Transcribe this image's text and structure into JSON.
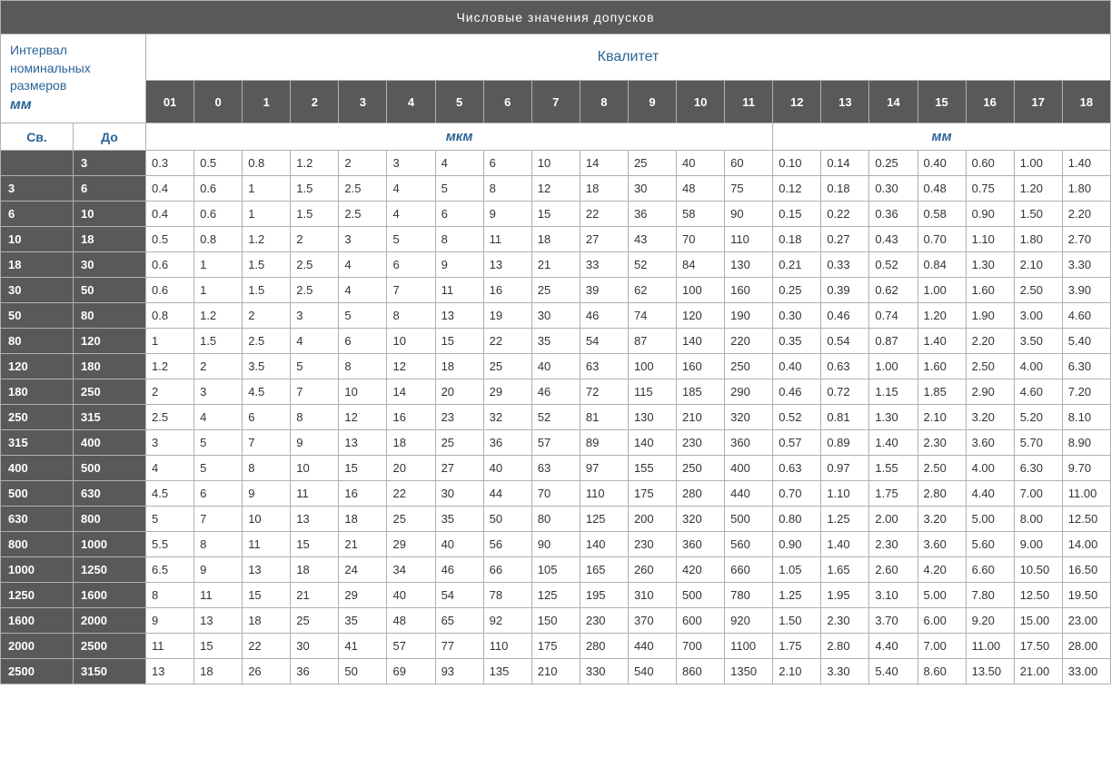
{
  "colors": {
    "dark_bg": "#595959",
    "dark_text": "#ffffff",
    "light_bg": "#ffffff",
    "accent_text": "#2a6496",
    "body_text": "#333333",
    "border": "#b0b0b0"
  },
  "title": "Числовые значения допусков",
  "corner": {
    "line1": "Интервал",
    "line2": "номинальных",
    "line3": "размеров",
    "unit": "мм"
  },
  "kvalitet_label": "Квалитет",
  "grade_labels": [
    "01",
    "0",
    "1",
    "2",
    "3",
    "4",
    "5",
    "6",
    "7",
    "8",
    "9",
    "10",
    "11",
    "12",
    "13",
    "14",
    "15",
    "16",
    "17",
    "18"
  ],
  "sub_labels": {
    "from": "Св.",
    "to": "До"
  },
  "unit_labels": {
    "mkm": "мкм",
    "mm": "мм"
  },
  "column_widths": {
    "from_col": 40,
    "to_col": 40,
    "grade_cols": "auto"
  },
  "rows": [
    {
      "from": "",
      "to": "3",
      "v": [
        "0.3",
        "0.5",
        "0.8",
        "1.2",
        "2",
        "3",
        "4",
        "6",
        "10",
        "14",
        "25",
        "40",
        "60",
        "0.10",
        "0.14",
        "0.25",
        "0.40",
        "0.60",
        "1.00",
        "1.40"
      ]
    },
    {
      "from": "3",
      "to": "6",
      "v": [
        "0.4",
        "0.6",
        "1",
        "1.5",
        "2.5",
        "4",
        "5",
        "8",
        "12",
        "18",
        "30",
        "48",
        "75",
        "0.12",
        "0.18",
        "0.30",
        "0.48",
        "0.75",
        "1.20",
        "1.80"
      ]
    },
    {
      "from": "6",
      "to": "10",
      "v": [
        "0.4",
        "0.6",
        "1",
        "1.5",
        "2.5",
        "4",
        "6",
        "9",
        "15",
        "22",
        "36",
        "58",
        "90",
        "0.15",
        "0.22",
        "0.36",
        "0.58",
        "0.90",
        "1.50",
        "2.20"
      ]
    },
    {
      "from": "10",
      "to": "18",
      "v": [
        "0.5",
        "0.8",
        "1.2",
        "2",
        "3",
        "5",
        "8",
        "11",
        "18",
        "27",
        "43",
        "70",
        "110",
        "0.18",
        "0.27",
        "0.43",
        "0.70",
        "1.10",
        "1.80",
        "2.70"
      ]
    },
    {
      "from": "18",
      "to": "30",
      "v": [
        "0.6",
        "1",
        "1.5",
        "2.5",
        "4",
        "6",
        "9",
        "13",
        "21",
        "33",
        "52",
        "84",
        "130",
        "0.21",
        "0.33",
        "0.52",
        "0.84",
        "1.30",
        "2.10",
        "3.30"
      ]
    },
    {
      "from": "30",
      "to": "50",
      "v": [
        "0.6",
        "1",
        "1.5",
        "2.5",
        "4",
        "7",
        "11",
        "16",
        "25",
        "39",
        "62",
        "100",
        "160",
        "0.25",
        "0.39",
        "0.62",
        "1.00",
        "1.60",
        "2.50",
        "3.90"
      ]
    },
    {
      "from": "50",
      "to": "80",
      "v": [
        "0.8",
        "1.2",
        "2",
        "3",
        "5",
        "8",
        "13",
        "19",
        "30",
        "46",
        "74",
        "120",
        "190",
        "0.30",
        "0.46",
        "0.74",
        "1.20",
        "1.90",
        "3.00",
        "4.60"
      ]
    },
    {
      "from": "80",
      "to": "120",
      "v": [
        "1",
        "1.5",
        "2.5",
        "4",
        "6",
        "10",
        "15",
        "22",
        "35",
        "54",
        "87",
        "140",
        "220",
        "0.35",
        "0.54",
        "0.87",
        "1.40",
        "2.20",
        "3.50",
        "5.40"
      ]
    },
    {
      "from": "120",
      "to": "180",
      "v": [
        "1.2",
        "2",
        "3.5",
        "5",
        "8",
        "12",
        "18",
        "25",
        "40",
        "63",
        "100",
        "160",
        "250",
        "0.40",
        "0.63",
        "1.00",
        "1.60",
        "2.50",
        "4.00",
        "6.30"
      ]
    },
    {
      "from": "180",
      "to": "250",
      "v": [
        "2",
        "3",
        "4.5",
        "7",
        "10",
        "14",
        "20",
        "29",
        "46",
        "72",
        "115",
        "185",
        "290",
        "0.46",
        "0.72",
        "1.15",
        "1.85",
        "2.90",
        "4.60",
        "7.20"
      ]
    },
    {
      "from": "250",
      "to": "315",
      "v": [
        "2.5",
        "4",
        "6",
        "8",
        "12",
        "16",
        "23",
        "32",
        "52",
        "81",
        "130",
        "210",
        "320",
        "0.52",
        "0.81",
        "1.30",
        "2.10",
        "3.20",
        "5.20",
        "8.10"
      ]
    },
    {
      "from": "315",
      "to": "400",
      "v": [
        "3",
        "5",
        "7",
        "9",
        "13",
        "18",
        "25",
        "36",
        "57",
        "89",
        "140",
        "230",
        "360",
        "0.57",
        "0.89",
        "1.40",
        "2.30",
        "3.60",
        "5.70",
        "8.90"
      ]
    },
    {
      "from": "400",
      "to": "500",
      "v": [
        "4",
        "5",
        "8",
        "10",
        "15",
        "20",
        "27",
        "40",
        "63",
        "97",
        "155",
        "250",
        "400",
        "0.63",
        "0.97",
        "1.55",
        "2.50",
        "4.00",
        "6.30",
        "9.70"
      ]
    },
    {
      "from": "500",
      "to": "630",
      "v": [
        "4.5",
        "6",
        "9",
        "11",
        "16",
        "22",
        "30",
        "44",
        "70",
        "110",
        "175",
        "280",
        "440",
        "0.70",
        "1.10",
        "1.75",
        "2.80",
        "4.40",
        "7.00",
        "11.00"
      ]
    },
    {
      "from": "630",
      "to": "800",
      "v": [
        "5",
        "7",
        "10",
        "13",
        "18",
        "25",
        "35",
        "50",
        "80",
        "125",
        "200",
        "320",
        "500",
        "0.80",
        "1.25",
        "2.00",
        "3.20",
        "5.00",
        "8.00",
        "12.50"
      ]
    },
    {
      "from": "800",
      "to": "1000",
      "v": [
        "5.5",
        "8",
        "11",
        "15",
        "21",
        "29",
        "40",
        "56",
        "90",
        "140",
        "230",
        "360",
        "560",
        "0.90",
        "1.40",
        "2.30",
        "3.60",
        "5.60",
        "9.00",
        "14.00"
      ]
    },
    {
      "from": "1000",
      "to": "1250",
      "v": [
        "6.5",
        "9",
        "13",
        "18",
        "24",
        "34",
        "46",
        "66",
        "105",
        "165",
        "260",
        "420",
        "660",
        "1.05",
        "1.65",
        "2.60",
        "4.20",
        "6.60",
        "10.50",
        "16.50"
      ]
    },
    {
      "from": "1250",
      "to": "1600",
      "v": [
        "8",
        "11",
        "15",
        "21",
        "29",
        "40",
        "54",
        "78",
        "125",
        "195",
        "310",
        "500",
        "780",
        "1.25",
        "1.95",
        "3.10",
        "5.00",
        "7.80",
        "12.50",
        "19.50"
      ]
    },
    {
      "from": "1600",
      "to": "2000",
      "v": [
        "9",
        "13",
        "18",
        "25",
        "35",
        "48",
        "65",
        "92",
        "150",
        "230",
        "370",
        "600",
        "920",
        "1.50",
        "2.30",
        "3.70",
        "6.00",
        "9.20",
        "15.00",
        "23.00"
      ]
    },
    {
      "from": "2000",
      "to": "2500",
      "v": [
        "11",
        "15",
        "22",
        "30",
        "41",
        "57",
        "77",
        "110",
        "175",
        "280",
        "440",
        "700",
        "1100",
        "1.75",
        "2.80",
        "4.40",
        "7.00",
        "11.00",
        "17.50",
        "28.00"
      ]
    },
    {
      "from": "2500",
      "to": "3150",
      "v": [
        "13",
        "18",
        "26",
        "36",
        "50",
        "69",
        "93",
        "135",
        "210",
        "330",
        "540",
        "860",
        "1350",
        "2.10",
        "3.30",
        "5.40",
        "8.60",
        "13.50",
        "21.00",
        "33.00"
      ]
    }
  ]
}
